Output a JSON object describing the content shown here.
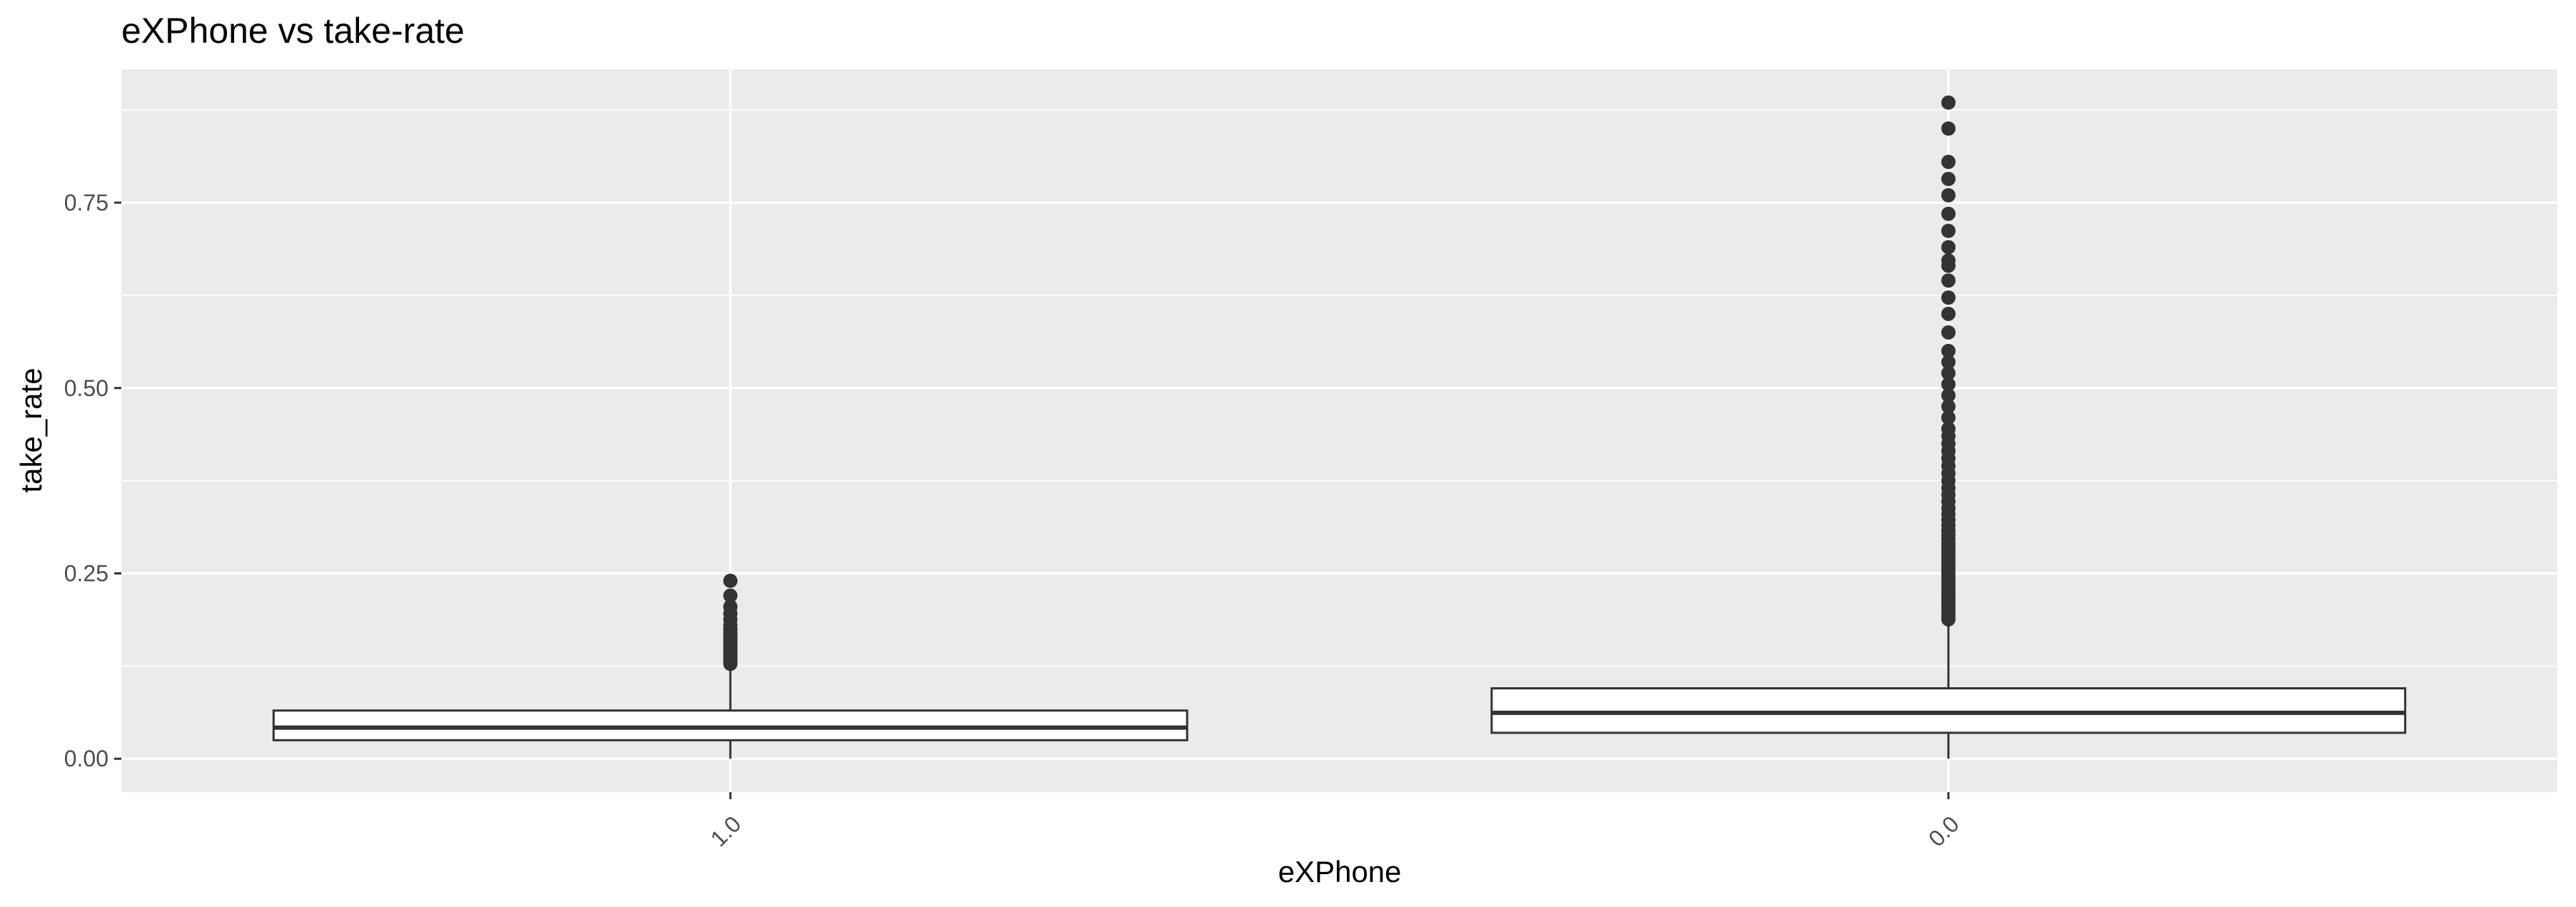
{
  "chart_data": {
    "type": "boxplot",
    "title": "eXPhone vs take-rate",
    "xlabel": "eXPhone",
    "ylabel": "take_rate",
    "ylim": [
      -0.045,
      0.93
    ],
    "yticks": [
      "0.00",
      "0.25",
      "0.50",
      "0.75"
    ],
    "ytick_values": [
      0,
      0.25,
      0.5,
      0.75
    ],
    "categories": [
      "1.0",
      "0.0"
    ],
    "grid": true,
    "legend": "none",
    "colors": {
      "panel": "#ebebeb",
      "grid": "#ffffff",
      "box_fill": "#ffffff",
      "box_line": "#333333",
      "outlier": "#333333"
    },
    "boxes": [
      {
        "category": "1.0",
        "whisker_low": 0.0,
        "q1": 0.025,
        "median": 0.042,
        "q3": 0.065,
        "whisker_high": 0.125,
        "outliers": [
          0.128,
          0.131,
          0.134,
          0.137,
          0.14,
          0.143,
          0.146,
          0.149,
          0.152,
          0.155,
          0.158,
          0.161,
          0.164,
          0.167,
          0.17,
          0.175,
          0.18,
          0.188,
          0.196,
          0.205,
          0.22,
          0.24
        ]
      },
      {
        "category": "0.0",
        "whisker_low": 0.0,
        "q1": 0.035,
        "median": 0.062,
        "q3": 0.095,
        "whisker_high": 0.185,
        "outliers": [
          0.188,
          0.192,
          0.196,
          0.2,
          0.204,
          0.208,
          0.212,
          0.216,
          0.22,
          0.224,
          0.228,
          0.232,
          0.236,
          0.24,
          0.245,
          0.25,
          0.255,
          0.26,
          0.265,
          0.27,
          0.275,
          0.28,
          0.285,
          0.29,
          0.296,
          0.302,
          0.308,
          0.315,
          0.322,
          0.33,
          0.338,
          0.347,
          0.356,
          0.365,
          0.375,
          0.385,
          0.395,
          0.405,
          0.415,
          0.425,
          0.435,
          0.445,
          0.46,
          0.475,
          0.49,
          0.505,
          0.52,
          0.535,
          0.55,
          0.575,
          0.6,
          0.622,
          0.645,
          0.665,
          0.672,
          0.69,
          0.712,
          0.735,
          0.76,
          0.782,
          0.805,
          0.85,
          0.885
        ]
      }
    ]
  }
}
